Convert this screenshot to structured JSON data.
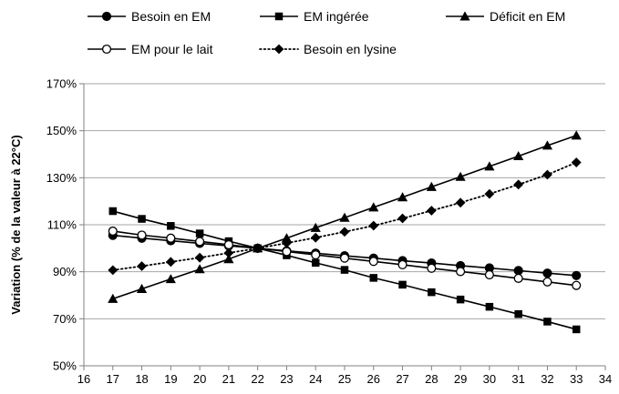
{
  "chart_data": {
    "type": "line",
    "title": "",
    "xlabel": "",
    "ylabel": "Variation (% de la valeur à 22°C)",
    "xlim": [
      16,
      34
    ],
    "ylim": [
      50,
      170
    ],
    "x_ticks": [
      16,
      17,
      18,
      19,
      20,
      21,
      22,
      23,
      24,
      25,
      26,
      27,
      28,
      29,
      30,
      31,
      32,
      33,
      34
    ],
    "y_ticks": [
      50,
      70,
      90,
      110,
      130,
      150,
      170
    ],
    "y_tick_labels": [
      "50%",
      "70%",
      "90%",
      "110%",
      "130%",
      "150%",
      "170%"
    ],
    "grid": "horizontal",
    "legend_position": "top",
    "x": [
      17,
      18,
      19,
      20,
      21,
      22,
      23,
      24,
      25,
      26,
      27,
      28,
      29,
      30,
      31,
      32,
      33
    ],
    "series": [
      {
        "name": "Besoin en EM",
        "marker": "circle-filled",
        "line": "solid",
        "values": [
          105.5,
          104.3,
          103.2,
          102.1,
          101.0,
          100.0,
          98.9,
          97.9,
          96.8,
          95.8,
          94.7,
          93.7,
          92.6,
          91.6,
          90.5,
          89.4,
          88.4
        ]
      },
      {
        "name": "EM ingérée",
        "marker": "square-filled",
        "line": "solid",
        "values": [
          115.8,
          112.5,
          109.5,
          106.3,
          103.0,
          100.0,
          97.0,
          93.8,
          90.8,
          87.4,
          84.5,
          81.3,
          78.2,
          75.1,
          72.0,
          68.8,
          65.5
        ]
      },
      {
        "name": "Déficit en EM",
        "marker": "triangle-filled",
        "line": "solid",
        "values": [
          78.5,
          82.7,
          86.9,
          91.1,
          95.4,
          100.0,
          104.3,
          108.7,
          113.0,
          117.4,
          121.7,
          126.1,
          130.4,
          134.8,
          139.2,
          143.7,
          148.0
        ]
      },
      {
        "name": "EM pour le lait",
        "marker": "circle-open",
        "line": "solid",
        "values": [
          107.3,
          105.6,
          104.3,
          102.9,
          101.5,
          100.0,
          98.6,
          97.2,
          95.8,
          94.4,
          93.0,
          91.5,
          90.1,
          88.7,
          87.2,
          85.7,
          84.2
        ]
      },
      {
        "name": "Besoin en lysine",
        "marker": "diamond-filled",
        "line": "dotted",
        "values": [
          90.7,
          92.4,
          94.2,
          96.0,
          98.0,
          100.0,
          102.2,
          104.5,
          107.0,
          109.6,
          112.7,
          116.0,
          119.4,
          123.1,
          127.1,
          131.3,
          136.5
        ]
      }
    ]
  }
}
